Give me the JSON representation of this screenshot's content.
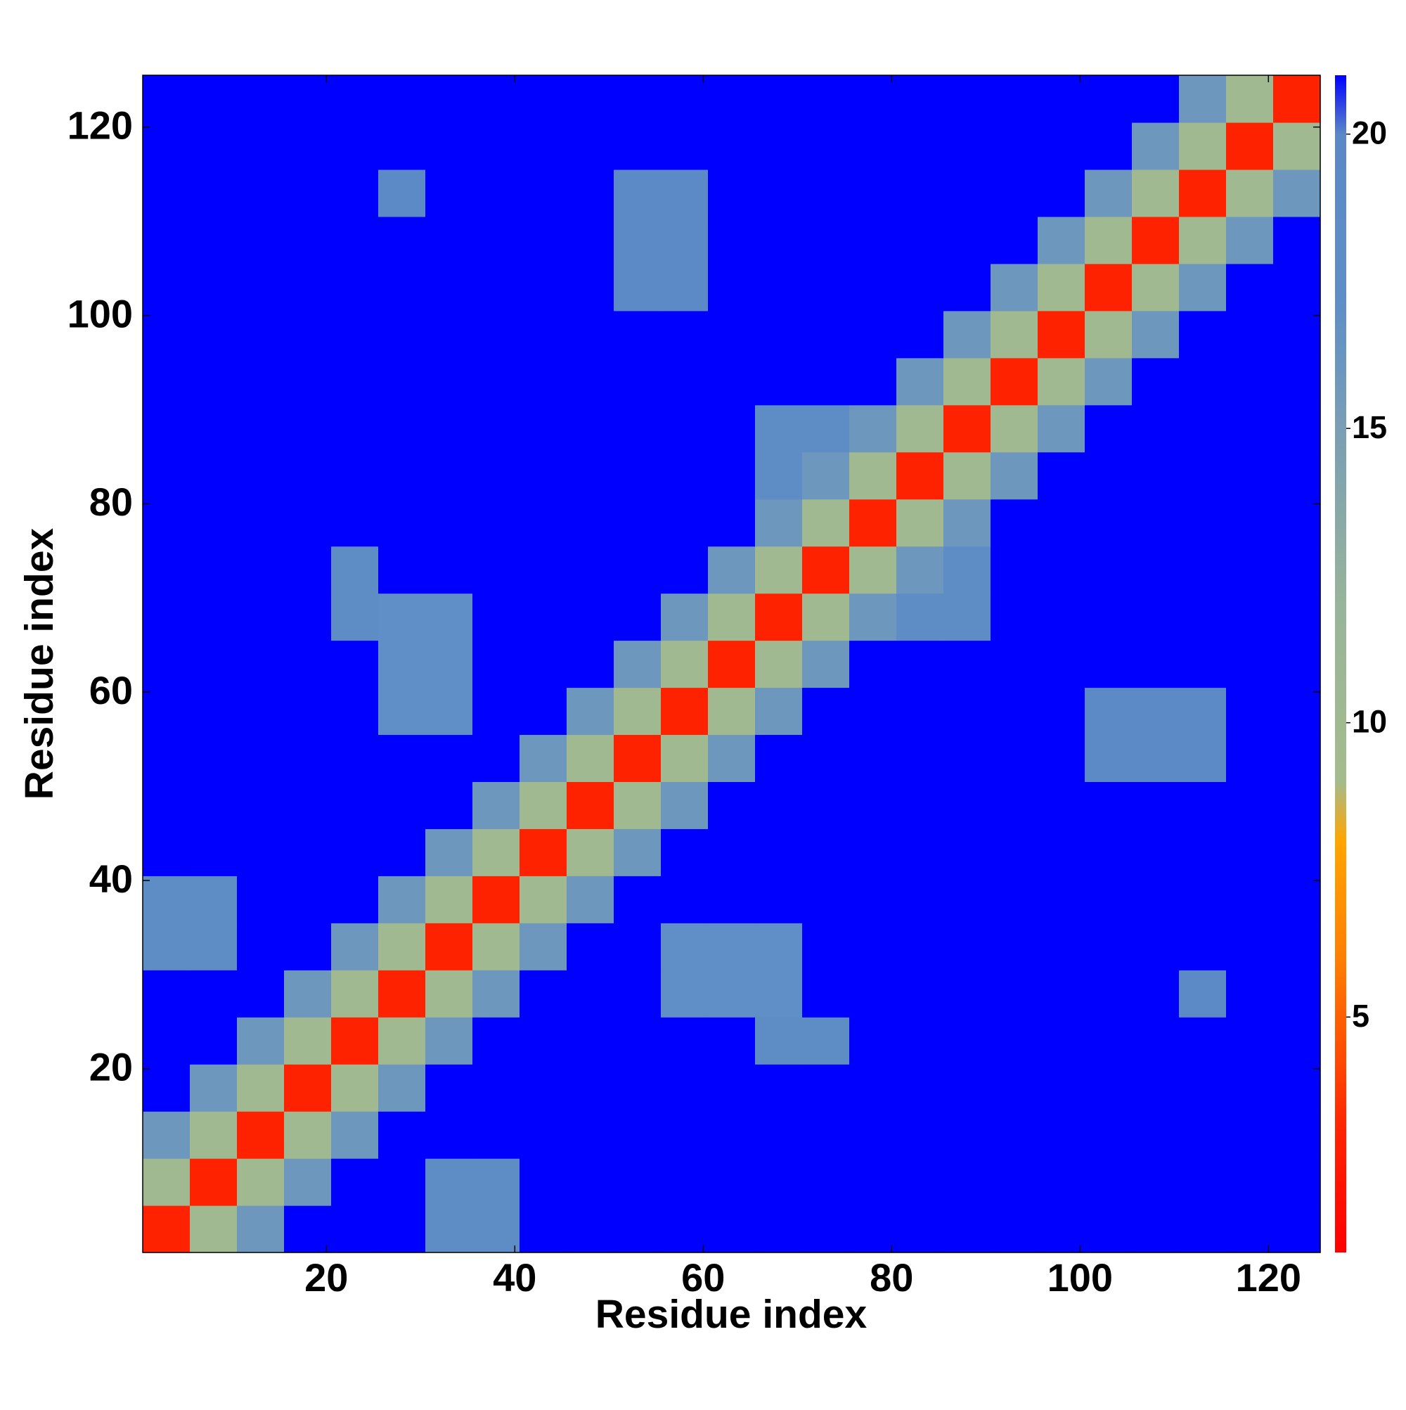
{
  "chart_data": {
    "type": "heatmap",
    "xlabel": "Residue index",
    "ylabel": "Residue index",
    "x": [
      3,
      8,
      13,
      18,
      23,
      28,
      33,
      38,
      43,
      48,
      53,
      58,
      63,
      68,
      73,
      78,
      83,
      88,
      93,
      98,
      103,
      108,
      113,
      118,
      123
    ],
    "y": [
      3,
      8,
      13,
      18,
      23,
      28,
      33,
      38,
      43,
      48,
      53,
      58,
      63,
      68,
      73,
      78,
      83,
      88,
      93,
      98,
      103,
      108,
      113,
      118,
      123
    ],
    "z": [
      [
        3,
        10,
        16,
        21,
        21,
        21,
        18,
        18,
        21,
        21,
        21,
        21,
        21,
        21,
        21,
        21,
        21,
        21,
        21,
        21,
        21,
        21,
        21,
        21,
        21
      ],
      [
        10,
        3,
        10,
        16,
        21,
        21,
        18,
        18,
        21,
        21,
        21,
        21,
        21,
        21,
        21,
        21,
        21,
        21,
        21,
        21,
        21,
        21,
        21,
        21,
        21
      ],
      [
        16,
        10,
        3,
        10,
        16,
        21,
        21,
        21,
        21,
        21,
        21,
        21,
        21,
        21,
        21,
        21,
        21,
        21,
        21,
        21,
        21,
        21,
        21,
        21,
        21
      ],
      [
        21,
        16,
        10,
        3,
        10,
        16,
        21,
        21,
        21,
        21,
        21,
        21,
        21,
        21,
        21,
        21,
        21,
        21,
        21,
        21,
        21,
        21,
        21,
        21,
        21
      ],
      [
        21,
        21,
        16,
        10,
        3,
        10,
        16,
        21,
        21,
        21,
        21,
        21,
        21,
        18,
        18,
        21,
        21,
        21,
        21,
        21,
        21,
        21,
        21,
        21,
        21
      ],
      [
        21,
        21,
        21,
        16,
        10,
        3,
        10,
        16,
        21,
        21,
        21,
        17,
        17,
        17,
        21,
        21,
        21,
        21,
        21,
        21,
        21,
        21,
        19,
        21,
        21
      ],
      [
        18,
        18,
        21,
        21,
        16,
        10,
        3,
        10,
        16,
        21,
        21,
        17,
        17,
        17,
        21,
        21,
        21,
        21,
        21,
        21,
        21,
        21,
        21,
        21,
        21
      ],
      [
        18,
        18,
        21,
        21,
        21,
        16,
        10,
        3,
        10,
        16,
        21,
        21,
        21,
        21,
        21,
        21,
        21,
        21,
        21,
        21,
        21,
        21,
        21,
        21,
        21
      ],
      [
        21,
        21,
        21,
        21,
        21,
        21,
        16,
        10,
        3,
        10,
        16,
        21,
        21,
        21,
        21,
        21,
        21,
        21,
        21,
        21,
        21,
        21,
        21,
        21,
        21
      ],
      [
        21,
        21,
        21,
        21,
        21,
        21,
        21,
        16,
        10,
        3,
        10,
        16,
        21,
        21,
        21,
        21,
        21,
        21,
        21,
        21,
        21,
        21,
        21,
        21,
        21
      ],
      [
        21,
        21,
        21,
        21,
        21,
        21,
        21,
        21,
        16,
        10,
        3,
        10,
        16,
        21,
        21,
        21,
        21,
        21,
        21,
        21,
        19,
        19,
        19,
        21,
        21
      ],
      [
        21,
        21,
        21,
        21,
        21,
        17,
        17,
        21,
        21,
        16,
        10,
        3,
        10,
        16,
        21,
        21,
        21,
        21,
        21,
        21,
        19,
        19,
        19,
        21,
        21
      ],
      [
        21,
        21,
        21,
        21,
        21,
        17,
        17,
        21,
        21,
        21,
        16,
        10,
        3,
        10,
        16,
        21,
        21,
        21,
        21,
        21,
        21,
        21,
        21,
        21,
        21
      ],
      [
        21,
        21,
        21,
        21,
        18,
        17,
        17,
        21,
        21,
        21,
        21,
        16,
        10,
        3,
        10,
        16,
        18,
        18,
        21,
        21,
        21,
        21,
        21,
        21,
        21
      ],
      [
        21,
        21,
        21,
        21,
        18,
        21,
        21,
        21,
        21,
        21,
        21,
        21,
        16,
        10,
        3,
        10,
        16,
        18,
        21,
        21,
        21,
        21,
        21,
        21,
        21
      ],
      [
        21,
        21,
        21,
        21,
        21,
        21,
        21,
        21,
        21,
        21,
        21,
        21,
        21,
        16,
        10,
        3,
        10,
        16,
        21,
        21,
        21,
        21,
        21,
        21,
        21
      ],
      [
        21,
        21,
        21,
        21,
        21,
        21,
        21,
        21,
        21,
        21,
        21,
        21,
        21,
        18,
        16,
        10,
        3,
        10,
        16,
        21,
        21,
        21,
        21,
        21,
        21
      ],
      [
        21,
        21,
        21,
        21,
        21,
        21,
        21,
        21,
        21,
        21,
        21,
        21,
        21,
        18,
        18,
        16,
        10,
        3,
        10,
        16,
        21,
        21,
        21,
        21,
        21
      ],
      [
        21,
        21,
        21,
        21,
        21,
        21,
        21,
        21,
        21,
        21,
        21,
        21,
        21,
        21,
        21,
        21,
        16,
        10,
        3,
        10,
        16,
        21,
        21,
        21,
        21
      ],
      [
        21,
        21,
        21,
        21,
        21,
        21,
        21,
        21,
        21,
        21,
        21,
        21,
        21,
        21,
        21,
        21,
        21,
        16,
        10,
        3,
        10,
        16,
        21,
        21,
        21
      ],
      [
        21,
        21,
        21,
        21,
        21,
        21,
        21,
        21,
        21,
        21,
        19,
        19,
        21,
        21,
        21,
        21,
        21,
        21,
        16,
        10,
        3,
        10,
        16,
        21,
        21
      ],
      [
        21,
        21,
        21,
        21,
        21,
        21,
        21,
        21,
        21,
        21,
        19,
        19,
        21,
        21,
        21,
        21,
        21,
        21,
        21,
        16,
        10,
        3,
        10,
        16,
        21
      ],
      [
        21,
        21,
        21,
        21,
        21,
        19,
        21,
        21,
        21,
        21,
        19,
        19,
        21,
        21,
        21,
        21,
        21,
        21,
        21,
        21,
        16,
        10,
        3,
        10,
        16
      ],
      [
        21,
        21,
        21,
        21,
        21,
        21,
        21,
        21,
        21,
        21,
        21,
        21,
        21,
        21,
        21,
        21,
        21,
        21,
        21,
        21,
        21,
        16,
        10,
        3,
        10
      ],
      [
        21,
        21,
        21,
        21,
        21,
        21,
        21,
        21,
        21,
        21,
        21,
        21,
        21,
        21,
        21,
        21,
        21,
        21,
        21,
        21,
        21,
        21,
        16,
        10,
        3
      ]
    ],
    "xlim": [
      0.5,
      125.5
    ],
    "ylim": [
      0.5,
      125.5
    ],
    "xticks": [
      20,
      40,
      60,
      80,
      100,
      120
    ],
    "yticks": [
      20,
      40,
      60,
      80,
      100,
      120
    ],
    "zlim": [
      1,
      21
    ],
    "colorbar_ticks": [
      5,
      10,
      15,
      20
    ],
    "colorscale": [
      [
        1,
        "#ff0000"
      ],
      [
        3,
        "#ff2200"
      ],
      [
        6,
        "#ff7f00"
      ],
      [
        8,
        "#ffa500"
      ],
      [
        9,
        "#a4bc8c"
      ],
      [
        12,
        "#98b49a"
      ],
      [
        15,
        "#7a9eb4"
      ],
      [
        17,
        "#5f8fc6"
      ],
      [
        20,
        "#5b88c6"
      ],
      [
        21,
        "#0000ff"
      ]
    ]
  }
}
